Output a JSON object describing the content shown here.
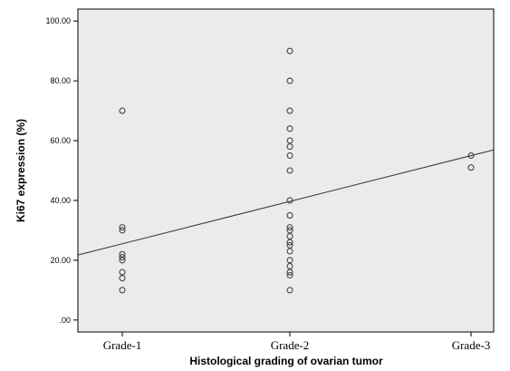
{
  "chart_data": {
    "type": "scatter",
    "title": "",
    "xlabel": "Histological grading of ovarian tumor",
    "ylabel": "Ki67 expression (%)",
    "categories": [
      "Grade-1",
      "Grade-2",
      "Grade-3"
    ],
    "ylim": [
      -4,
      104
    ],
    "y_ticks": [
      0,
      20,
      40,
      60,
      80,
      100
    ],
    "y_tick_labels": [
      ".00",
      "20.00",
      "40.00",
      "60.00",
      "80.00",
      "100.00"
    ],
    "grid": false,
    "background_color": "#ebebeb",
    "marker_color": "#444444",
    "points": [
      {
        "category": "Grade-1",
        "y": 70
      },
      {
        "category": "Grade-1",
        "y": 31
      },
      {
        "category": "Grade-1",
        "y": 30
      },
      {
        "category": "Grade-1",
        "y": 22
      },
      {
        "category": "Grade-1",
        "y": 21
      },
      {
        "category": "Grade-1",
        "y": 20
      },
      {
        "category": "Grade-1",
        "y": 16
      },
      {
        "category": "Grade-1",
        "y": 14
      },
      {
        "category": "Grade-1",
        "y": 10
      },
      {
        "category": "Grade-2",
        "y": 90
      },
      {
        "category": "Grade-2",
        "y": 80
      },
      {
        "category": "Grade-2",
        "y": 70
      },
      {
        "category": "Grade-2",
        "y": 64
      },
      {
        "category": "Grade-2",
        "y": 60
      },
      {
        "category": "Grade-2",
        "y": 58
      },
      {
        "category": "Grade-2",
        "y": 55
      },
      {
        "category": "Grade-2",
        "y": 50
      },
      {
        "category": "Grade-2",
        "y": 40
      },
      {
        "category": "Grade-2",
        "y": 35
      },
      {
        "category": "Grade-2",
        "y": 31
      },
      {
        "category": "Grade-2",
        "y": 30
      },
      {
        "category": "Grade-2",
        "y": 28
      },
      {
        "category": "Grade-2",
        "y": 26
      },
      {
        "category": "Grade-2",
        "y": 25
      },
      {
        "category": "Grade-2",
        "y": 23
      },
      {
        "category": "Grade-2",
        "y": 20
      },
      {
        "category": "Grade-2",
        "y": 18
      },
      {
        "category": "Grade-2",
        "y": 16
      },
      {
        "category": "Grade-2",
        "y": 15
      },
      {
        "category": "Grade-2",
        "y": 10
      },
      {
        "category": "Grade-3",
        "y": 55
      },
      {
        "category": "Grade-3",
        "y": 51
      }
    ],
    "fit_line": {
      "type": "linear",
      "x_range": [
        "Grade-1",
        "Grade-3"
      ],
      "y_start": 25.5,
      "y_end": 55
    }
  }
}
